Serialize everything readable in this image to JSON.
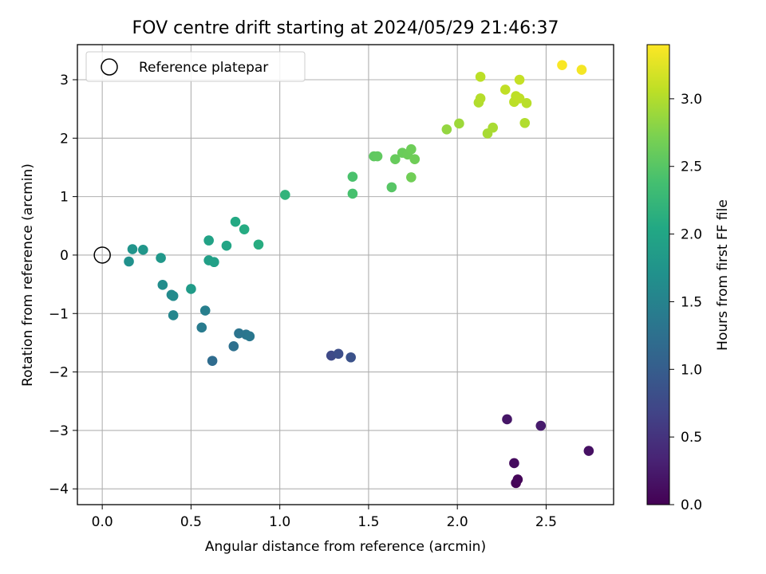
{
  "chart_data": {
    "type": "scatter",
    "title": "FOV centre drift starting at 2024/05/29 21:46:37",
    "xlabel": "Angular distance from reference (arcmin)",
    "ylabel": "Rotation from reference (arcmin)",
    "xlim": [
      -0.14,
      2.88
    ],
    "ylim": [
      -4.27,
      3.6
    ],
    "xticks": [
      0.0,
      0.5,
      1.0,
      1.5,
      2.0,
      2.5
    ],
    "xtick_labels": [
      "0.0",
      "0.5",
      "1.0",
      "1.5",
      "2.0",
      "2.5"
    ],
    "yticks": [
      -4,
      -3,
      -2,
      -1,
      0,
      1,
      2,
      3
    ],
    "ytick_labels": [
      "−4",
      "−3",
      "−2",
      "−1",
      "0",
      "1",
      "2",
      "3"
    ],
    "grid": true,
    "colormap": "viridis",
    "colorbar": {
      "label": "Hours from first FF file",
      "range": [
        0.0,
        3.4
      ],
      "ticks": [
        0.0,
        0.5,
        1.0,
        1.5,
        2.0,
        2.5,
        3.0
      ],
      "tick_labels": [
        "0.0",
        "0.5",
        "1.0",
        "1.5",
        "2.0",
        "2.5",
        "3.0"
      ]
    },
    "legend": {
      "placement": "top-left",
      "entries": [
        {
          "label": "Reference platepar",
          "marker": "hollow-circle"
        }
      ]
    },
    "reference_point": {
      "x": 0.0,
      "y": 0.0
    },
    "points": [
      {
        "x": 2.33,
        "y": -3.9,
        "c": 0.02
      },
      {
        "x": 2.34,
        "y": -3.84,
        "c": 0.05
      },
      {
        "x": 2.32,
        "y": -3.56,
        "c": 0.1
      },
      {
        "x": 2.74,
        "y": -3.35,
        "c": 0.15
      },
      {
        "x": 2.28,
        "y": -2.81,
        "c": 0.2
      },
      {
        "x": 2.47,
        "y": -2.92,
        "c": 0.25
      },
      {
        "x": 1.29,
        "y": -1.72,
        "c": 0.75
      },
      {
        "x": 1.33,
        "y": -1.69,
        "c": 0.8
      },
      {
        "x": 1.4,
        "y": -1.75,
        "c": 0.85
      },
      {
        "x": 0.62,
        "y": -1.81,
        "c": 1.2
      },
      {
        "x": 0.74,
        "y": -1.56,
        "c": 1.25
      },
      {
        "x": 0.77,
        "y": -1.34,
        "c": 1.3
      },
      {
        "x": 0.81,
        "y": -1.36,
        "c": 1.32
      },
      {
        "x": 0.83,
        "y": -1.39,
        "c": 1.35
      },
      {
        "x": 0.56,
        "y": -1.24,
        "c": 1.4
      },
      {
        "x": 0.58,
        "y": -0.95,
        "c": 1.45
      },
      {
        "x": 0.4,
        "y": -1.03,
        "c": 1.55
      },
      {
        "x": 0.39,
        "y": -0.68,
        "c": 1.6
      },
      {
        "x": 0.4,
        "y": -0.7,
        "c": 1.62
      },
      {
        "x": 0.34,
        "y": -0.51,
        "c": 1.65
      },
      {
        "x": 0.15,
        "y": -0.11,
        "c": 1.7
      },
      {
        "x": 0.17,
        "y": 0.1,
        "c": 1.75
      },
      {
        "x": 0.23,
        "y": 0.09,
        "c": 1.78
      },
      {
        "x": 0.33,
        "y": -0.05,
        "c": 1.8
      },
      {
        "x": 0.5,
        "y": -0.58,
        "c": 1.85
      },
      {
        "x": 0.6,
        "y": -0.09,
        "c": 1.9
      },
      {
        "x": 0.63,
        "y": -0.12,
        "c": 1.92
      },
      {
        "x": 0.6,
        "y": 0.25,
        "c": 1.95
      },
      {
        "x": 0.7,
        "y": 0.16,
        "c": 2.0
      },
      {
        "x": 0.75,
        "y": 0.57,
        "c": 2.05
      },
      {
        "x": 0.8,
        "y": 0.44,
        "c": 2.08
      },
      {
        "x": 0.88,
        "y": 0.18,
        "c": 2.1
      },
      {
        "x": 1.03,
        "y": 1.03,
        "c": 2.2
      },
      {
        "x": 1.41,
        "y": 1.05,
        "c": 2.4
      },
      {
        "x": 1.41,
        "y": 1.34,
        "c": 2.42
      },
      {
        "x": 1.63,
        "y": 1.16,
        "c": 2.5
      },
      {
        "x": 1.53,
        "y": 1.69,
        "c": 2.55
      },
      {
        "x": 1.55,
        "y": 1.69,
        "c": 2.56
      },
      {
        "x": 1.65,
        "y": 1.64,
        "c": 2.6
      },
      {
        "x": 1.69,
        "y": 1.75,
        "c": 2.62
      },
      {
        "x": 1.72,
        "y": 1.72,
        "c": 2.63
      },
      {
        "x": 1.74,
        "y": 1.81,
        "c": 2.64
      },
      {
        "x": 1.76,
        "y": 1.64,
        "c": 2.65
      },
      {
        "x": 1.74,
        "y": 1.33,
        "c": 2.66
      },
      {
        "x": 1.94,
        "y": 2.15,
        "c": 2.85
      },
      {
        "x": 2.01,
        "y": 2.25,
        "c": 2.9
      },
      {
        "x": 2.17,
        "y": 2.08,
        "c": 2.95
      },
      {
        "x": 2.2,
        "y": 2.18,
        "c": 2.96
      },
      {
        "x": 2.12,
        "y": 2.61,
        "c": 3.0
      },
      {
        "x": 2.13,
        "y": 2.68,
        "c": 3.02
      },
      {
        "x": 2.13,
        "y": 3.05,
        "c": 3.05
      },
      {
        "x": 2.27,
        "y": 2.83,
        "c": 3.08
      },
      {
        "x": 2.32,
        "y": 2.62,
        "c": 3.05
      },
      {
        "x": 2.33,
        "y": 2.72,
        "c": 3.06
      },
      {
        "x": 2.35,
        "y": 2.68,
        "c": 3.07
      },
      {
        "x": 2.35,
        "y": 3.0,
        "c": 3.1
      },
      {
        "x": 2.39,
        "y": 2.6,
        "c": 3.04
      },
      {
        "x": 2.38,
        "y": 2.26,
        "c": 3.0
      },
      {
        "x": 2.59,
        "y": 3.25,
        "c": 3.38
      },
      {
        "x": 2.7,
        "y": 3.17,
        "c": 3.35
      }
    ]
  }
}
